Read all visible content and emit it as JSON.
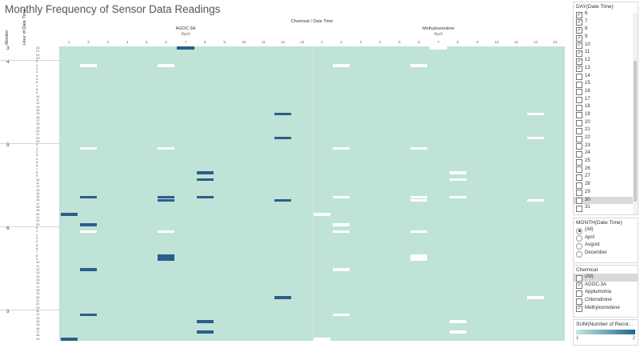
{
  "title": "Monthly Frequency of Sensor Data Readings",
  "header": {
    "column_title": "Chemical / Date Time",
    "axis_monitor": "Monitor",
    "axis_hour": "Hour of Date Time"
  },
  "colors": {
    "base": "#bfe3d6",
    "high": "#2a5f8a",
    "null": "#ffffff"
  },
  "chart_data": {
    "type": "heatmap",
    "columns": [
      {
        "chemical": "AGOC-3A",
        "month": "April",
        "days": [
          "1",
          "2",
          "3",
          "4",
          "5",
          "6",
          "7",
          "8",
          "9",
          "10",
          "11",
          "12",
          "13"
        ]
      },
      {
        "chemical": "Methylosmolene",
        "month": "April",
        "days": [
          "1",
          "2",
          "3",
          "4",
          "5",
          "6",
          "7",
          "8",
          "9",
          "10",
          "11",
          "12",
          "13"
        ]
      }
    ],
    "rows": [
      {
        "monitor": "3",
        "hours": [
          "20",
          "21",
          "22",
          "23"
        ]
      },
      {
        "monitor": "4",
        "hours": [
          "0",
          "1",
          "2",
          "3",
          "4",
          "5",
          "6",
          "7",
          "8",
          "9",
          "10",
          "11",
          "12",
          "13",
          "14",
          "15",
          "16",
          "17",
          "18",
          "19",
          "20",
          "21",
          "22",
          "23"
        ]
      },
      {
        "monitor": "5",
        "hours": [
          "0",
          "1",
          "2",
          "3",
          "4",
          "5",
          "6",
          "7",
          "8",
          "9",
          "10",
          "11",
          "12",
          "13",
          "14",
          "15",
          "16",
          "17",
          "18",
          "19",
          "20",
          "21",
          "22",
          "23"
        ]
      },
      {
        "monitor": "6",
        "hours": [
          "0",
          "1",
          "2",
          "3",
          "4",
          "5",
          "6",
          "7",
          "8",
          "9",
          "10",
          "11",
          "12",
          "13",
          "14",
          "15",
          "16",
          "17",
          "18",
          "19",
          "20",
          "21",
          "22",
          "23"
        ]
      },
      {
        "monitor": "9",
        "hours": [
          "11",
          "12",
          "13",
          "14",
          "15",
          "16",
          "17",
          "18",
          "19"
        ]
      }
    ],
    "value_range": [
      1,
      2
    ],
    "cells": [
      {
        "chem": 0,
        "day": 7,
        "m": "3",
        "h": "20",
        "v": 2
      },
      {
        "chem": 1,
        "day": 7,
        "m": "3",
        "h": "20",
        "v": 0
      },
      {
        "chem": 0,
        "day": 2,
        "m": "4",
        "h": "1",
        "v": 0
      },
      {
        "chem": 0,
        "day": 6,
        "m": "4",
        "h": "1",
        "v": 0
      },
      {
        "chem": 1,
        "day": 2,
        "m": "4",
        "h": "1",
        "v": 0
      },
      {
        "chem": 1,
        "day": 6,
        "m": "4",
        "h": "1",
        "v": 0
      },
      {
        "chem": 0,
        "day": 12,
        "m": "4",
        "h": "15",
        "v": 2
      },
      {
        "chem": 1,
        "day": 12,
        "m": "4",
        "h": "15",
        "v": 0
      },
      {
        "chem": 0,
        "day": 12,
        "m": "4",
        "h": "22",
        "v": 2
      },
      {
        "chem": 1,
        "day": 12,
        "m": "4",
        "h": "22",
        "v": 0
      },
      {
        "chem": 0,
        "day": 2,
        "m": "5",
        "h": "1",
        "v": 0
      },
      {
        "chem": 0,
        "day": 6,
        "m": "5",
        "h": "1",
        "v": 0
      },
      {
        "chem": 1,
        "day": 2,
        "m": "5",
        "h": "1",
        "v": 0
      },
      {
        "chem": 1,
        "day": 6,
        "m": "5",
        "h": "1",
        "v": 0
      },
      {
        "chem": 0,
        "day": 8,
        "m": "5",
        "h": "8",
        "v": 2
      },
      {
        "chem": 1,
        "day": 8,
        "m": "5",
        "h": "8",
        "v": 0
      },
      {
        "chem": 0,
        "day": 8,
        "m": "5",
        "h": "10",
        "v": 2
      },
      {
        "chem": 1,
        "day": 8,
        "m": "5",
        "h": "10",
        "v": 0
      },
      {
        "chem": 0,
        "day": 2,
        "m": "5",
        "h": "15",
        "v": 2
      },
      {
        "chem": 0,
        "day": 6,
        "m": "5",
        "h": "15",
        "v": 2
      },
      {
        "chem": 0,
        "day": 8,
        "m": "5",
        "h": "15",
        "v": 2
      },
      {
        "chem": 1,
        "day": 2,
        "m": "5",
        "h": "15",
        "v": 0
      },
      {
        "chem": 1,
        "day": 6,
        "m": "5",
        "h": "15",
        "v": 0
      },
      {
        "chem": 1,
        "day": 8,
        "m": "5",
        "h": "15",
        "v": 0
      },
      {
        "chem": 0,
        "day": 6,
        "m": "5",
        "h": "16",
        "v": 2
      },
      {
        "chem": 1,
        "day": 6,
        "m": "5",
        "h": "16",
        "v": 0
      },
      {
        "chem": 0,
        "day": 12,
        "m": "5",
        "h": "16",
        "v": 2
      },
      {
        "chem": 1,
        "day": 12,
        "m": "5",
        "h": "16",
        "v": 0
      },
      {
        "chem": 0,
        "day": 1,
        "m": "5",
        "h": "20",
        "v": 2
      },
      {
        "chem": 1,
        "day": 1,
        "m": "5",
        "h": "20",
        "v": 0
      },
      {
        "chem": 0,
        "day": 2,
        "m": "5",
        "h": "23",
        "v": 2
      },
      {
        "chem": 1,
        "day": 2,
        "m": "5",
        "h": "23",
        "v": 0
      },
      {
        "chem": 0,
        "day": 2,
        "m": "6",
        "h": "1",
        "v": 0
      },
      {
        "chem": 0,
        "day": 6,
        "m": "6",
        "h": "1",
        "v": 0
      },
      {
        "chem": 1,
        "day": 2,
        "m": "6",
        "h": "1",
        "v": 0
      },
      {
        "chem": 1,
        "day": 6,
        "m": "6",
        "h": "1",
        "v": 0
      },
      {
        "chem": 0,
        "day": 6,
        "m": "6",
        "h": "8",
        "v": 2
      },
      {
        "chem": 0,
        "day": 6,
        "m": "6",
        "h": "9",
        "v": 2
      },
      {
        "chem": 1,
        "day": 6,
        "m": "6",
        "h": "8",
        "v": 0
      },
      {
        "chem": 1,
        "day": 6,
        "m": "6",
        "h": "9",
        "v": 0
      },
      {
        "chem": 0,
        "day": 2,
        "m": "6",
        "h": "12",
        "v": 2
      },
      {
        "chem": 1,
        "day": 2,
        "m": "6",
        "h": "12",
        "v": 0
      },
      {
        "chem": 0,
        "day": 12,
        "m": "6",
        "h": "20",
        "v": 2
      },
      {
        "chem": 1,
        "day": 12,
        "m": "6",
        "h": "20",
        "v": 0
      },
      {
        "chem": 0,
        "day": 2,
        "m": "9",
        "h": "12",
        "v": 2
      },
      {
        "chem": 1,
        "day": 2,
        "m": "9",
        "h": "12",
        "v": 0
      },
      {
        "chem": 0,
        "day": 8,
        "m": "9",
        "h": "14",
        "v": 2
      },
      {
        "chem": 1,
        "day": 8,
        "m": "9",
        "h": "14",
        "v": 0
      },
      {
        "chem": 0,
        "day": 8,
        "m": "9",
        "h": "17",
        "v": 2
      },
      {
        "chem": 1,
        "day": 8,
        "m": "9",
        "h": "17",
        "v": 0
      },
      {
        "chem": 0,
        "day": 1,
        "m": "9",
        "h": "19",
        "v": 2
      },
      {
        "chem": 1,
        "day": 1,
        "m": "9",
        "h": "19",
        "v": 0
      }
    ]
  },
  "filters": {
    "day": {
      "title": "DAY(Date Time)",
      "items": [
        {
          "label": "6",
          "checked": true
        },
        {
          "label": "7",
          "checked": true
        },
        {
          "label": "8",
          "checked": true
        },
        {
          "label": "9",
          "checked": true
        },
        {
          "label": "10",
          "checked": true
        },
        {
          "label": "11",
          "checked": true
        },
        {
          "label": "12",
          "checked": true
        },
        {
          "label": "13",
          "checked": true
        },
        {
          "label": "14",
          "checked": false
        },
        {
          "label": "15",
          "checked": false
        },
        {
          "label": "16",
          "checked": false
        },
        {
          "label": "17",
          "checked": false
        },
        {
          "label": "18",
          "checked": false
        },
        {
          "label": "19",
          "checked": false
        },
        {
          "label": "20",
          "checked": false
        },
        {
          "label": "21",
          "checked": false
        },
        {
          "label": "22",
          "checked": false
        },
        {
          "label": "23",
          "checked": false
        },
        {
          "label": "24",
          "checked": false
        },
        {
          "label": "25",
          "checked": false
        },
        {
          "label": "26",
          "checked": false
        },
        {
          "label": "27",
          "checked": false
        },
        {
          "label": "28",
          "checked": false
        },
        {
          "label": "29",
          "checked": false
        },
        {
          "label": "30",
          "checked": false,
          "selected": true
        },
        {
          "label": "31",
          "checked": false
        }
      ]
    },
    "month": {
      "title": "MONTH(Date Time)",
      "items": [
        {
          "label": "(All)",
          "on": true
        },
        {
          "label": "April",
          "on": false
        },
        {
          "label": "August",
          "on": false
        },
        {
          "label": "December",
          "on": false
        }
      ]
    },
    "chemical": {
      "title": "Chemical",
      "items": [
        {
          "label": "(All)",
          "checked": false,
          "selected": true
        },
        {
          "label": "AGOC-3A",
          "checked": true
        },
        {
          "label": "Appluimonia",
          "checked": false
        },
        {
          "label": "Chlorodinine",
          "checked": false
        },
        {
          "label": "Methylosmolene",
          "checked": true
        }
      ]
    }
  },
  "legend": {
    "title": "SUM(Number of Recor...",
    "min": "1",
    "max": "2"
  }
}
